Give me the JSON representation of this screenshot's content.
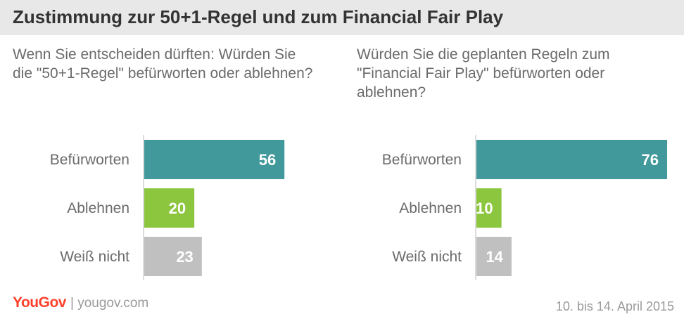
{
  "title": "Zustimmung zur 50+1-Regel und zum Financial Fair Play",
  "chart_data": [
    {
      "type": "bar",
      "orientation": "horizontal",
      "subtitle": "Wenn Sie entscheiden dürften: Würden Sie die \"50+1-Regel\" befürworten oder ablehnen?",
      "categories": [
        "Befürworten",
        "Ablehnen",
        "Weiß nicht"
      ],
      "values": [
        56,
        20,
        23
      ],
      "colors": [
        "#41999b",
        "#8cc63f",
        "#c0c0c0"
      ],
      "xlim": [
        0,
        100
      ],
      "grid": false
    },
    {
      "type": "bar",
      "orientation": "horizontal",
      "subtitle": "Würden Sie die geplanten Regeln zum \"Financial Fair Play\" befürworten oder ablehnen?",
      "categories": [
        "Befürworten",
        "Ablehnen",
        "Weiß nicht"
      ],
      "values": [
        76,
        10,
        14
      ],
      "colors": [
        "#41999b",
        "#8cc63f",
        "#c0c0c0"
      ],
      "xlim": [
        0,
        100
      ],
      "grid": false
    }
  ],
  "footer": {
    "logo": "YouGov",
    "site": "| yougov.com",
    "date": "10. bis 14. April 2015"
  }
}
